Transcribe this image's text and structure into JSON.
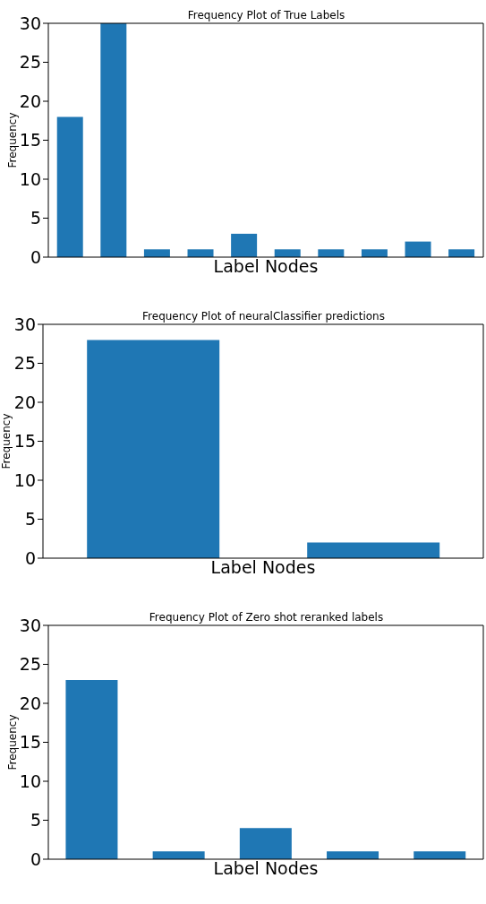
{
  "chart_data": [
    {
      "type": "bar",
      "title": "Frequency Plot of True Labels",
      "xlabel": "Label Nodes",
      "ylabel": "Frequency",
      "categories": [
        null,
        null,
        null,
        null,
        null,
        null,
        null,
        null,
        null,
        null
      ],
      "values": [
        18,
        30,
        1,
        1,
        3,
        1,
        1,
        1,
        2,
        1
      ],
      "color": "#1f77b4",
      "ylim": [
        0,
        30
      ],
      "yticks": [
        0,
        5,
        10,
        15,
        20,
        25,
        30
      ],
      "tick_labels": "y",
      "grid": false
    },
    {
      "type": "bar",
      "title": "Frequency Plot of neuralClassifier predictions",
      "xlabel": "Label Nodes",
      "ylabel": "Frequency",
      "categories": [
        null,
        null
      ],
      "values": [
        28,
        2
      ],
      "color": "#1f77b4",
      "ylim": [
        0,
        30
      ],
      "yticks": [
        0,
        5,
        10,
        15,
        20,
        25,
        30
      ],
      "tick_labels": "y",
      "grid": false
    },
    {
      "type": "bar",
      "title": "Frequency Plot of Zero shot reranked labels",
      "xlabel": "Label Nodes",
      "ylabel": "Frequency",
      "categories": [
        null,
        null,
        null,
        null,
        null
      ],
      "values": [
        23,
        1,
        4,
        1,
        1
      ],
      "color": "#1f77b4",
      "ylim": [
        0,
        30
      ],
      "yticks": [
        0,
        5,
        10,
        15,
        20,
        25,
        30
      ],
      "tick_labels": "y",
      "grid": false
    }
  ]
}
